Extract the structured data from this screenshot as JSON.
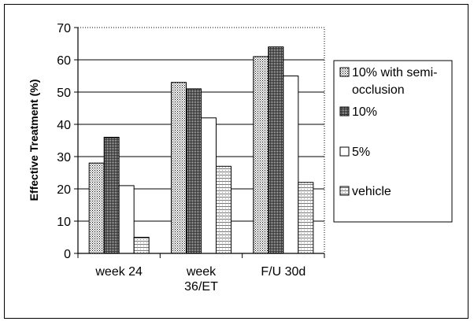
{
  "chart_data": {
    "type": "bar",
    "ylabel": "Effective Treatment (%)",
    "ylim": [
      0,
      70
    ],
    "yticks": [
      "0",
      "10",
      "20",
      "30",
      "40",
      "50",
      "60",
      "70"
    ],
    "grid": true,
    "legend_position": "right",
    "categories": [
      "week 24",
      "week 36/ET",
      "F/U 30d"
    ],
    "category_lines": [
      [
        "week 24"
      ],
      [
        "week",
        "36/ET"
      ],
      [
        "F/U 30d"
      ]
    ],
    "series": [
      {
        "name": "10% with semi-occlusion",
        "legend_lines": [
          "10% with semi-",
          "occlusion"
        ],
        "values": [
          28,
          53,
          61
        ],
        "pattern": "light-dots",
        "color": "#b8b8b8"
      },
      {
        "name": "10%",
        "legend_lines": [
          "10%"
        ],
        "values": [
          36,
          51,
          64
        ],
        "pattern": "dark-dots",
        "color": "#505050"
      },
      {
        "name": "5%",
        "legend_lines": [
          "5%"
        ],
        "values": [
          21,
          42,
          55
        ],
        "pattern": "white",
        "color": "#ffffff"
      },
      {
        "name": "vehicle",
        "legend_lines": [
          "vehicle"
        ],
        "values": [
          5,
          27,
          22
        ],
        "pattern": "hatch",
        "color": "#d8d8d8"
      }
    ]
  }
}
